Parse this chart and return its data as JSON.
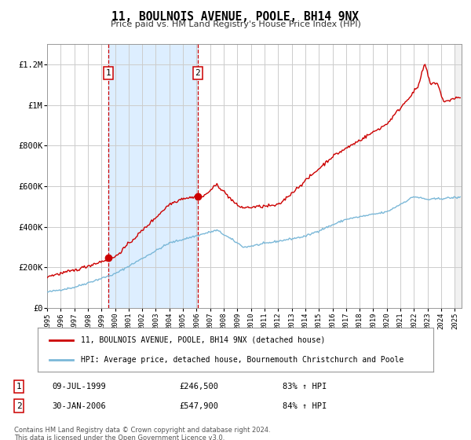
{
  "title": "11, BOULNOIS AVENUE, POOLE, BH14 9NX",
  "subtitle": "Price paid vs. HM Land Registry's House Price Index (HPI)",
  "ylim": [
    0,
    1300000
  ],
  "xlim_start": 1995.0,
  "xlim_end": 2025.5,
  "sale1_x": 1999.52,
  "sale1_y": 246500,
  "sale1_label": "1",
  "sale1_date": "09-JUL-1999",
  "sale1_price": "£246,500",
  "sale1_hpi": "83% ↑ HPI",
  "sale2_x": 2006.08,
  "sale2_y": 547900,
  "sale2_label": "2",
  "sale2_date": "30-JAN-2006",
  "sale2_price": "£547,900",
  "sale2_hpi": "84% ↑ HPI",
  "hpi_line_color": "#7bb8d8",
  "price_line_color": "#cc0000",
  "shade_color": "#ddeeff",
  "grid_color": "#cccccc",
  "bg_color": "#ffffff",
  "sale_dot_color": "#cc0000",
  "dashed_line_color": "#cc0000",
  "legend_label_red": "11, BOULNOIS AVENUE, POOLE, BH14 9NX (detached house)",
  "legend_label_blue": "HPI: Average price, detached house, Bournemouth Christchurch and Poole",
  "footer": "Contains HM Land Registry data © Crown copyright and database right 2024.\nThis data is licensed under the Open Government Licence v3.0.",
  "yticks": [
    0,
    200000,
    400000,
    600000,
    800000,
    1000000,
    1200000
  ],
  "ytick_labels": [
    "£0",
    "£200K",
    "£400K",
    "£600K",
    "£800K",
    "£1M",
    "£1.2M"
  ],
  "hatch_color": "#cccccc"
}
